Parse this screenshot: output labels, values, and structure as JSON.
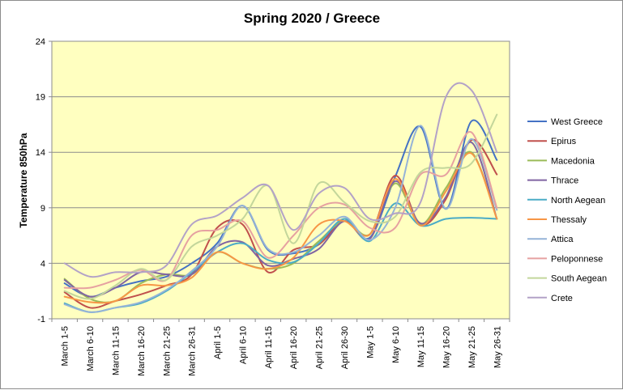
{
  "chart_data": {
    "type": "line",
    "title": "Spring 2020 / Greece",
    "ylabel": "Temperature 850hPa",
    "xlabel": "",
    "ylim": [
      -1,
      24
    ],
    "yticks": [
      -1,
      4,
      9,
      14,
      19,
      24
    ],
    "grid": true,
    "legend_position": "right",
    "plot_background": "#ffffc0",
    "categories": [
      "March 1-5",
      "March 6-10",
      "March 11-15",
      "March 16-20",
      "March 21-25",
      "March 26-31",
      "April 1-5",
      "April 6-10",
      "April 11-15",
      "April 16-20",
      "April 21-25",
      "April 26-30",
      "May 1-5",
      "May 6-10",
      "May 11-15",
      "May 16-20",
      "May 21-25",
      "May 26-31"
    ],
    "series": [
      {
        "name": "West Greece",
        "color": "#4472c4",
        "values": [
          2.2,
          1.0,
          1.8,
          2.4,
          2.8,
          4.0,
          5.8,
          9.2,
          5.2,
          4.9,
          5.7,
          8.0,
          6.3,
          11.8,
          16.3,
          8.9,
          16.8,
          13.3
        ]
      },
      {
        "name": "Epirus",
        "color": "#c0504d",
        "values": [
          1.4,
          0.0,
          0.6,
          1.2,
          2.0,
          3.0,
          7.2,
          7.5,
          3.2,
          5.2,
          5.7,
          7.8,
          6.6,
          11.9,
          7.5,
          9.8,
          15.1,
          12.0
        ]
      },
      {
        "name": "Macedonia",
        "color": "#9bbb59",
        "values": [
          2.6,
          0.8,
          0.6,
          2.2,
          3.0,
          3.0,
          5.0,
          4.0,
          3.5,
          4.0,
          6.0,
          7.8,
          6.6,
          11.2,
          7.5,
          10.8,
          14.0,
          8.0
        ]
      },
      {
        "name": "Thrace",
        "color": "#8064a2",
        "values": [
          2.5,
          1.0,
          1.8,
          3.2,
          3.0,
          3.0,
          5.5,
          5.9,
          3.8,
          4.4,
          5.3,
          7.8,
          6.2,
          11.4,
          7.6,
          10.0,
          14.9,
          8.0
        ]
      },
      {
        "name": "North Aegean",
        "color": "#4bacc6",
        "values": [
          0.4,
          -0.4,
          0.0,
          0.4,
          1.5,
          3.2,
          5.0,
          5.8,
          4.3,
          4.1,
          5.8,
          8.0,
          6.0,
          9.4,
          7.4,
          8.0,
          8.1,
          8.0
        ]
      },
      {
        "name": "Thessaly",
        "color": "#f79646",
        "values": [
          1.0,
          0.5,
          0.6,
          2.0,
          2.0,
          2.7,
          5.0,
          4.0,
          3.5,
          4.5,
          7.5,
          7.8,
          6.6,
          11.6,
          7.4,
          10.5,
          13.9,
          8.0
        ]
      },
      {
        "name": "Attica",
        "color": "#95b3d7",
        "values": [
          0.3,
          -0.4,
          0.0,
          0.5,
          1.6,
          3.3,
          5.5,
          9.2,
          5.3,
          5.0,
          6.5,
          8.2,
          6.1,
          9.0,
          16.4,
          8.9,
          15.2,
          8.8
        ]
      },
      {
        "name": "Peloponnese",
        "color": "#e6a1a1",
        "values": [
          1.8,
          1.8,
          2.5,
          3.4,
          2.5,
          6.5,
          7.0,
          7.8,
          4.5,
          6.5,
          9.0,
          9.3,
          7.2,
          7.2,
          12.0,
          12.0,
          15.8,
          9.0
        ]
      },
      {
        "name": "South Aegean",
        "color": "#c3d69b",
        "values": [
          1.5,
          0.8,
          2.0,
          3.5,
          2.5,
          5.5,
          6.5,
          8.0,
          11.0,
          5.8,
          11.2,
          9.5,
          7.8,
          8.2,
          12.2,
          12.6,
          13.0,
          17.4
        ]
      },
      {
        "name": "Crete",
        "color": "#b3a2c7",
        "values": [
          4.0,
          2.8,
          3.2,
          3.2,
          3.8,
          7.5,
          8.3,
          9.9,
          11.0,
          7.0,
          10.3,
          10.8,
          8.0,
          8.5,
          9.5,
          19.0,
          19.6,
          14.0
        ]
      }
    ]
  }
}
